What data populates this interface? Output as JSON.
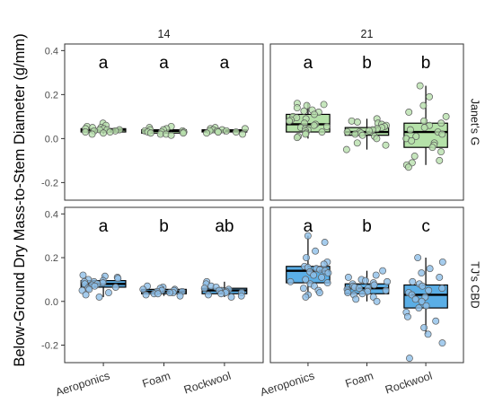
{
  "chart_data": {
    "type": "boxplot",
    "ylabel": "Below-Ground Dry Mass-to-Stem Diameter (g/mm)",
    "xlabel": "",
    "categories": [
      "Aeroponics",
      "Foam",
      "Rockwool"
    ],
    "columns": [
      "14",
      "21"
    ],
    "rows": [
      "Janet's G",
      "TJ's CBD"
    ],
    "ylim": [
      -0.28,
      0.43
    ],
    "yticks": [
      -0.2,
      0.0,
      0.2,
      0.4
    ],
    "ytick_labels": [
      "-0.2",
      "0.0",
      "0.2",
      "0.4"
    ],
    "colors": {
      "Janet's G": "#b5e2a9",
      "TJ's CBD": "#5aaee6",
      "points_Janet's G": "#b8e0ad",
      "points_TJ's CBD": "#8fbfe8"
    },
    "panels": [
      {
        "row": "Janet's G",
        "col": "14",
        "groups": [
          {
            "category": "Aeroponics",
            "letter": "a",
            "min": 0.02,
            "q1": 0.03,
            "median": 0.04,
            "q3": 0.045,
            "max": 0.07,
            "points": [
              0.07,
              0.06,
              0.055,
              0.05,
              0.05,
              0.045,
              0.045,
              0.04,
              0.04,
              0.04,
              0.035,
              0.035,
              0.03,
              0.03,
              0.025,
              0.02
            ]
          },
          {
            "category": "Foam",
            "letter": "a",
            "min": 0.015,
            "q1": 0.025,
            "median": 0.035,
            "q3": 0.04,
            "max": 0.055,
            "points": [
              0.055,
              0.05,
              0.045,
              0.04,
              0.04,
              0.035,
              0.035,
              0.03,
              0.03,
              0.03,
              0.025,
              0.025,
              0.02,
              0.02,
              0.015
            ]
          },
          {
            "category": "Rockwool",
            "letter": "a",
            "min": 0.02,
            "q1": 0.03,
            "median": 0.035,
            "q3": 0.04,
            "max": 0.05,
            "points": [
              0.05,
              0.045,
              0.045,
              0.04,
              0.04,
              0.035,
              0.035,
              0.035,
              0.03,
              0.03,
              0.03,
              0.025,
              0.02
            ]
          }
        ]
      },
      {
        "row": "Janet's G",
        "col": "21",
        "groups": [
          {
            "category": "Aeroponics",
            "letter": "a",
            "min": 0.0,
            "q1": 0.03,
            "median": 0.065,
            "q3": 0.11,
            "max": 0.16,
            "points": [
              0.16,
              0.155,
              0.15,
              0.14,
              0.13,
              0.125,
              0.12,
              0.11,
              0.1,
              0.095,
              0.09,
              0.085,
              0.08,
              0.07,
              0.065,
              0.06,
              0.055,
              0.05,
              0.045,
              0.04,
              0.035,
              0.03,
              0.025,
              0.02,
              0.01,
              0.005
            ]
          },
          {
            "category": "Foam",
            "letter": "b",
            "min": -0.05,
            "q1": 0.015,
            "median": 0.03,
            "q3": 0.05,
            "max": 0.09,
            "points": [
              0.09,
              0.08,
              0.075,
              0.07,
              0.065,
              0.06,
              0.055,
              0.05,
              0.045,
              0.04,
              0.035,
              0.03,
              0.03,
              0.025,
              0.02,
              0.015,
              0.01,
              0.0,
              -0.02,
              -0.03,
              -0.05
            ]
          },
          {
            "category": "Rockwool",
            "letter": "b",
            "min": -0.12,
            "q1": -0.04,
            "median": 0.03,
            "q3": 0.07,
            "max": 0.24,
            "points": [
              0.24,
              0.19,
              0.15,
              0.12,
              0.1,
              0.08,
              0.07,
              0.06,
              0.05,
              0.04,
              0.03,
              0.02,
              0.01,
              0.0,
              -0.01,
              -0.02,
              -0.03,
              -0.04,
              -0.06,
              -0.08,
              -0.1,
              -0.11,
              -0.12,
              -0.13
            ]
          }
        ]
      },
      {
        "row": "TJ's CBD",
        "col": "14",
        "groups": [
          {
            "category": "Aeroponics",
            "letter": "a",
            "min": 0.02,
            "q1": 0.065,
            "median": 0.08,
            "q3": 0.095,
            "max": 0.12,
            "points": [
              0.12,
              0.115,
              0.11,
              0.105,
              0.1,
              0.095,
              0.09,
              0.09,
              0.085,
              0.08,
              0.08,
              0.075,
              0.07,
              0.065,
              0.06,
              0.055,
              0.05,
              0.04,
              0.03,
              0.02
            ]
          },
          {
            "category": "Foam",
            "letter": "b",
            "min": 0.025,
            "q1": 0.035,
            "median": 0.045,
            "q3": 0.055,
            "max": 0.07,
            "points": [
              0.07,
              0.065,
              0.06,
              0.055,
              0.055,
              0.05,
              0.05,
              0.045,
              0.045,
              0.04,
              0.04,
              0.035,
              0.035,
              0.03,
              0.025
            ]
          },
          {
            "category": "Rockwool",
            "letter": "ab",
            "min": 0.02,
            "q1": 0.035,
            "median": 0.05,
            "q3": 0.06,
            "max": 0.09,
            "points": [
              0.09,
              0.08,
              0.07,
              0.065,
              0.06,
              0.055,
              0.05,
              0.05,
              0.045,
              0.04,
              0.04,
              0.035,
              0.03,
              0.025,
              0.02
            ]
          }
        ]
      },
      {
        "row": "TJ's CBD",
        "col": "21",
        "groups": [
          {
            "category": "Aeroponics",
            "letter": "a",
            "min": 0.02,
            "q1": 0.085,
            "median": 0.14,
            "q3": 0.16,
            "max": 0.3,
            "points": [
              0.3,
              0.27,
              0.23,
              0.2,
              0.18,
              0.17,
              0.16,
              0.155,
              0.15,
              0.145,
              0.14,
              0.135,
              0.13,
              0.12,
              0.11,
              0.1,
              0.09,
              0.085,
              0.08,
              0.07,
              0.06,
              0.05,
              0.04,
              0.03,
              0.02
            ]
          },
          {
            "category": "Foam",
            "letter": "b",
            "min": 0.0,
            "q1": 0.035,
            "median": 0.06,
            "q3": 0.08,
            "max": 0.14,
            "points": [
              0.14,
              0.12,
              0.11,
              0.1,
              0.095,
              0.09,
              0.085,
              0.08,
              0.075,
              0.07,
              0.065,
              0.06,
              0.06,
              0.055,
              0.05,
              0.045,
              0.04,
              0.035,
              0.03,
              0.02,
              0.01,
              0.0
            ]
          },
          {
            "category": "Rockwool",
            "letter": "c",
            "min": -0.15,
            "q1": -0.03,
            "median": 0.03,
            "q3": 0.075,
            "max": 0.2,
            "points": [
              0.2,
              0.18,
              0.15,
              0.13,
              0.11,
              0.09,
              0.08,
              0.07,
              0.06,
              0.05,
              0.04,
              0.03,
              0.02,
              0.01,
              0.0,
              -0.02,
              -0.03,
              -0.05,
              -0.07,
              -0.09,
              -0.12,
              -0.15,
              -0.19,
              -0.26
            ]
          }
        ]
      }
    ]
  }
}
